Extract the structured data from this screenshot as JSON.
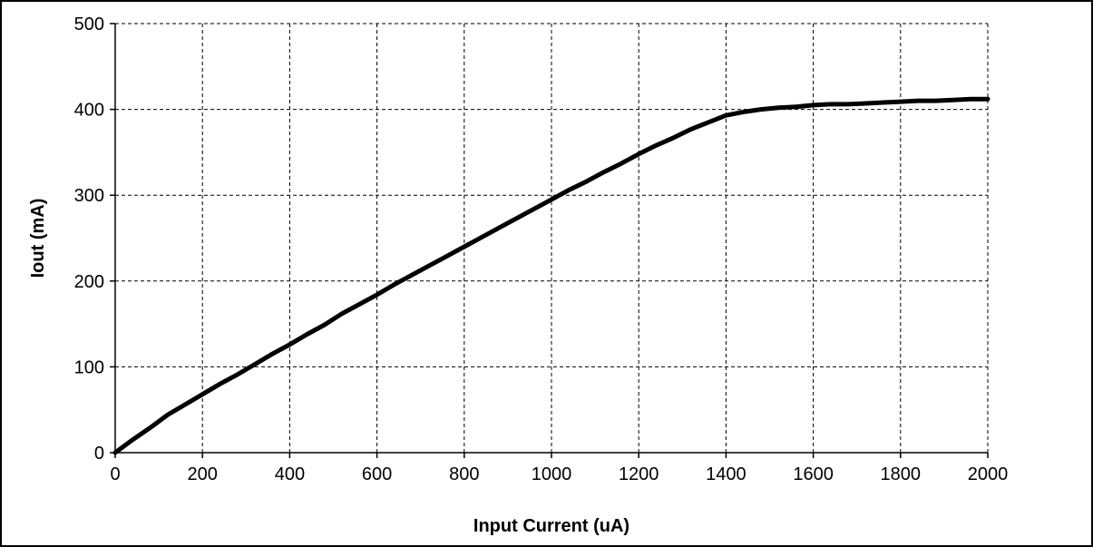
{
  "chart_data": {
    "type": "line",
    "xlabel": "Input Current (uA)",
    "ylabel": "Iout (mA)",
    "xlim": [
      0,
      2000
    ],
    "ylim": [
      0,
      500
    ],
    "xticks": [
      0,
      200,
      400,
      600,
      800,
      1000,
      1200,
      1400,
      1600,
      1800,
      2000
    ],
    "yticks": [
      0,
      100,
      200,
      300,
      400,
      500
    ],
    "grid": true,
    "grid_style": "dashed",
    "series": [
      {
        "color": "#000000",
        "x": [
          0,
          40,
          80,
          120,
          160,
          200,
          240,
          280,
          320,
          360,
          400,
          440,
          480,
          520,
          560,
          600,
          640,
          680,
          720,
          760,
          800,
          840,
          880,
          920,
          960,
          1000,
          1040,
          1080,
          1120,
          1160,
          1200,
          1240,
          1280,
          1320,
          1360,
          1400,
          1440,
          1480,
          1520,
          1560,
          1600,
          1640,
          1680,
          1720,
          1760,
          1800,
          1840,
          1880,
          1920,
          1960,
          2000
        ],
        "y": [
          0,
          15,
          29,
          44,
          56,
          68,
          80,
          91,
          103,
          115,
          126,
          138,
          149,
          162,
          173,
          184,
          196,
          207,
          218,
          229,
          240,
          251,
          262,
          273,
          284,
          295,
          306,
          316,
          327,
          337,
          348,
          358,
          367,
          377,
          385,
          393,
          397,
          400,
          402,
          403,
          405,
          406,
          406,
          407,
          408,
          409,
          410,
          410,
          411,
          412,
          412
        ]
      }
    ]
  }
}
